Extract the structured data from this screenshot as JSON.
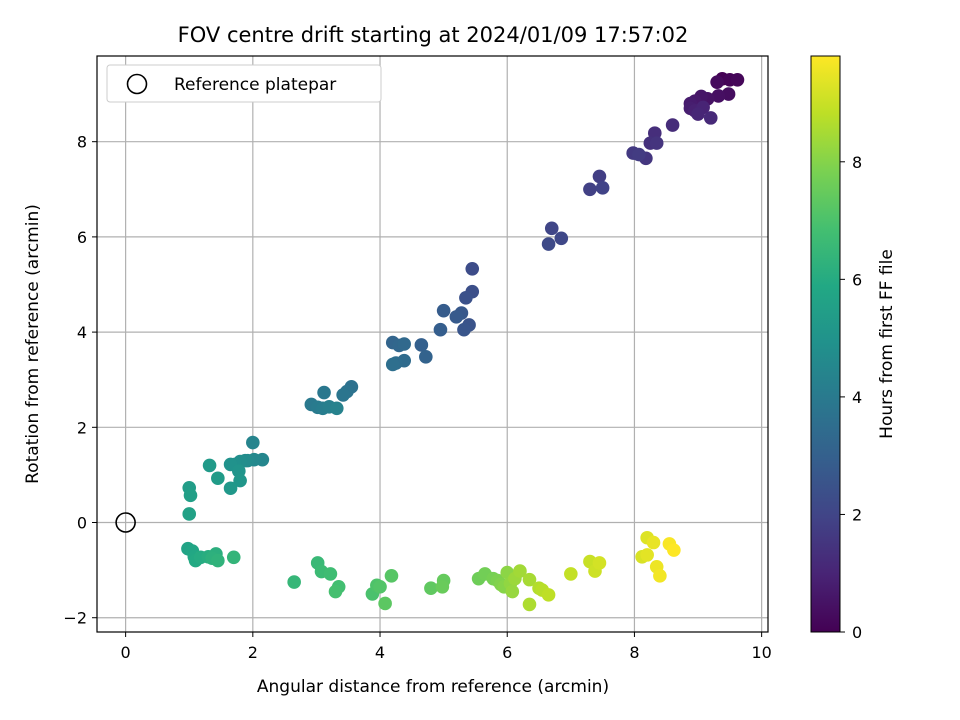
{
  "chart_data": {
    "type": "scatter",
    "title": "FOV centre drift starting at 2024/01/09 17:57:02",
    "xlabel": "Angular distance from reference (arcmin)",
    "ylabel": "Rotation from reference (arcmin)",
    "xlim": [
      -0.45,
      10.1
    ],
    "ylim": [
      -2.3,
      9.8
    ],
    "xticks": [
      0,
      2,
      4,
      6,
      8,
      10
    ],
    "yticks": [
      -2,
      0,
      2,
      4,
      6,
      8
    ],
    "grid": true,
    "legend": {
      "location": "upper-left",
      "entries": [
        "Reference platepar"
      ]
    },
    "reference_point": {
      "x": 0,
      "y": 0,
      "marker": "open-circle"
    },
    "colorbar": {
      "label": "Hours from first FF file",
      "colormap": "viridis",
      "range": [
        0,
        9.8
      ],
      "ticks": [
        0,
        2,
        4,
        6,
        8
      ]
    },
    "series": [
      {
        "points": [
          [
            9.38,
            9.32
          ],
          [
            9.5,
            9.3
          ],
          [
            9.62,
            9.3
          ],
          [
            9.3,
            9.25
          ],
          [
            9.48,
            9.0
          ],
          [
            9.32,
            8.96
          ],
          [
            9.15,
            8.9
          ],
          [
            9.05,
            8.95
          ],
          [
            8.95,
            8.85
          ],
          [
            8.88,
            8.8
          ],
          [
            8.88,
            8.7
          ],
          [
            8.95,
            8.65
          ],
          [
            9.08,
            8.72
          ],
          [
            9.0,
            8.58
          ],
          [
            9.2,
            8.5
          ],
          [
            8.6,
            8.35
          ],
          [
            8.32,
            8.18
          ],
          [
            8.25,
            7.97
          ],
          [
            8.35,
            7.97
          ],
          [
            8.18,
            7.65
          ],
          [
            7.98,
            7.76
          ],
          [
            8.07,
            7.73
          ],
          [
            7.45,
            7.27
          ],
          [
            7.3,
            7.0
          ],
          [
            7.5,
            7.03
          ],
          [
            6.7,
            6.18
          ],
          [
            6.85,
            5.97
          ],
          [
            6.65,
            5.85
          ],
          [
            5.45,
            5.33
          ],
          [
            5.45,
            4.85
          ],
          [
            5.35,
            4.72
          ],
          [
            5.4,
            4.15
          ],
          [
            5.32,
            4.05
          ],
          [
            5.28,
            4.4
          ],
          [
            5.2,
            4.32
          ],
          [
            5.0,
            4.45
          ],
          [
            4.95,
            4.05
          ],
          [
            4.65,
            3.73
          ],
          [
            4.72,
            3.48
          ],
          [
            4.2,
            3.78
          ],
          [
            4.3,
            3.72
          ],
          [
            4.38,
            3.75
          ],
          [
            4.38,
            3.4
          ],
          [
            4.25,
            3.35
          ],
          [
            4.2,
            3.32
          ],
          [
            3.55,
            2.85
          ],
          [
            3.48,
            2.75
          ],
          [
            3.42,
            2.68
          ],
          [
            3.12,
            2.73
          ],
          [
            2.92,
            2.48
          ],
          [
            3.02,
            2.42
          ],
          [
            3.1,
            2.4
          ],
          [
            3.2,
            2.43
          ],
          [
            3.32,
            2.4
          ],
          [
            2.0,
            1.68
          ],
          [
            2.15,
            1.32
          ],
          [
            2.02,
            1.32
          ],
          [
            1.92,
            1.3
          ],
          [
            1.88,
            1.3
          ],
          [
            1.8,
            1.28
          ],
          [
            1.72,
            1.22
          ],
          [
            1.65,
            1.22
          ],
          [
            1.78,
            1.08
          ],
          [
            1.8,
            0.88
          ],
          [
            1.65,
            0.72
          ],
          [
            1.32,
            1.2
          ],
          [
            1.45,
            0.93
          ],
          [
            1.0,
            0.73
          ],
          [
            1.02,
            0.57
          ],
          [
            1.0,
            0.18
          ],
          [
            0.98,
            -0.55
          ],
          [
            1.05,
            -0.6
          ],
          [
            1.08,
            -0.72
          ],
          [
            1.1,
            -0.8
          ],
          [
            1.18,
            -0.73
          ],
          [
            1.3,
            -0.72
          ],
          [
            1.42,
            -0.66
          ],
          [
            1.36,
            -0.75
          ],
          [
            1.45,
            -0.8
          ],
          [
            1.7,
            -0.73
          ],
          [
            2.65,
            -1.25
          ],
          [
            3.02,
            -0.85
          ],
          [
            3.08,
            -1.03
          ],
          [
            3.22,
            -1.08
          ],
          [
            3.35,
            -1.35
          ],
          [
            3.3,
            -1.45
          ],
          [
            3.88,
            -1.5
          ],
          [
            3.95,
            -1.32
          ],
          [
            4.0,
            -1.35
          ],
          [
            4.18,
            -1.12
          ],
          [
            4.08,
            -1.7
          ],
          [
            4.8,
            -1.38
          ],
          [
            5.0,
            -1.22
          ],
          [
            4.98,
            -1.35
          ],
          [
            5.55,
            -1.18
          ],
          [
            5.65,
            -1.08
          ],
          [
            5.78,
            -1.18
          ],
          [
            5.85,
            -1.22
          ],
          [
            5.9,
            -1.3
          ],
          [
            5.95,
            -1.35
          ],
          [
            6.0,
            -1.05
          ],
          [
            6.05,
            -1.28
          ],
          [
            6.08,
            -1.45
          ],
          [
            6.12,
            -1.18
          ],
          [
            6.2,
            -1.02
          ],
          [
            6.35,
            -1.2
          ],
          [
            6.35,
            -1.72
          ],
          [
            6.5,
            -1.38
          ],
          [
            6.55,
            -1.42
          ],
          [
            6.65,
            -1.52
          ],
          [
            7.0,
            -1.08
          ],
          [
            7.3,
            -0.82
          ],
          [
            7.38,
            -1.02
          ],
          [
            7.45,
            -0.85
          ],
          [
            8.12,
            -0.72
          ],
          [
            8.2,
            -0.32
          ],
          [
            8.2,
            -0.68
          ],
          [
            8.3,
            -0.42
          ],
          [
            8.35,
            -0.93
          ],
          [
            8.4,
            -1.12
          ],
          [
            8.55,
            -0.45
          ],
          [
            8.62,
            -0.58
          ]
        ]
      }
    ]
  }
}
